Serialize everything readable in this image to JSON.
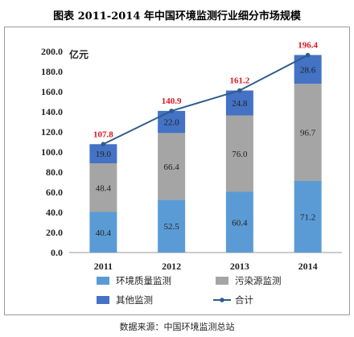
{
  "title": "图表    2011-2014 年中国环境监测行业细分市场规模",
  "source": "数据来源：中国环境监测总站",
  "chart_data": {
    "type": "bar",
    "stacked": true,
    "unit_label": "亿元",
    "categories": [
      "2011",
      "2012",
      "2013",
      "2014"
    ],
    "ylim": [
      0,
      200
    ],
    "yticks": [
      "0.0",
      "20.0",
      "40.0",
      "60.0",
      "80.0",
      "100.0",
      "120.0",
      "140.0",
      "160.0",
      "180.0",
      "200.0"
    ],
    "grid": false,
    "legend_position": "bottom",
    "series": [
      {
        "name": "环境质量监测",
        "values": [
          40.4,
          52.5,
          60.4,
          71.2
        ],
        "labels": [
          "40.4",
          "52.5",
          "60.4",
          "71.2"
        ],
        "color": "#5b9bd5"
      },
      {
        "name": "污染源监测",
        "values": [
          48.4,
          66.4,
          76.0,
          96.7
        ],
        "labels": [
          "48.4",
          "66.4",
          "76.0",
          "96.7"
        ],
        "color": "#a5a5a5"
      },
      {
        "name": "其他监测",
        "values": [
          19.0,
          22.0,
          24.8,
          28.6
        ],
        "labels": [
          "19.0",
          "22.0",
          "24.8",
          "28.6"
        ],
        "color": "#4472c4"
      }
    ],
    "total": {
      "name": "合计",
      "values": [
        107.8,
        140.9,
        161.2,
        196.4
      ],
      "labels": [
        "107.8",
        "140.9",
        "161.2",
        "196.4"
      ],
      "color": "#2e5c8a",
      "label_color": "#e0141e"
    }
  }
}
